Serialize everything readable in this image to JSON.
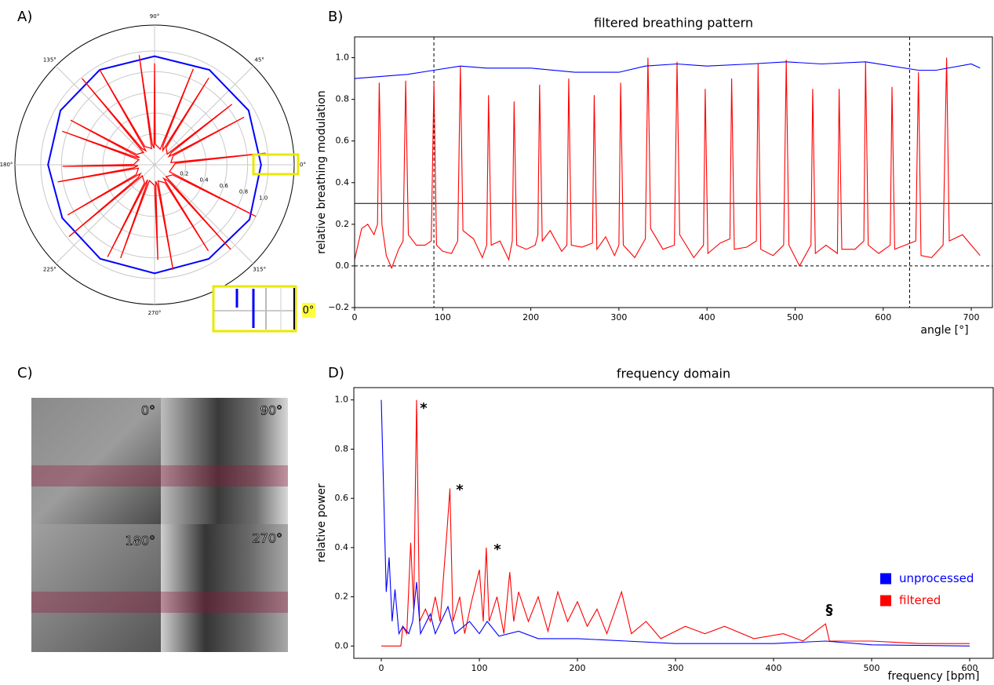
{
  "panel_labels": [
    "A)",
    "B)",
    "C)",
    "D)"
  ],
  "inset_label": "0°",
  "images": {
    "labels": [
      "0°",
      "90°",
      "180°",
      "270°"
    ]
  },
  "chart_data": [
    {
      "type": "polar",
      "rlim": [
        -0.1,
        1.25
      ],
      "rticks": [
        0.2,
        0.4,
        0.6,
        0.8,
        {
          "value": 1.0,
          "label": "1.0"
        }
      ],
      "thetaticks": [
        {
          "value": 0,
          "label": "0°"
        },
        {
          "value": 45,
          "label": "45°"
        },
        {
          "value": 90,
          "label": "90°"
        },
        {
          "value": 135,
          "label": "135°"
        },
        {
          "value": 180,
          "label": "180°"
        },
        {
          "value": 225,
          "label": "225°"
        },
        {
          "value": 270,
          "label": "270°"
        },
        {
          "value": 315,
          "label": "315°"
        }
      ],
      "series": [
        {
          "color": "#0000ff",
          "theta": [
            0,
            30,
            60,
            90,
            120,
            150,
            180,
            210,
            240,
            270,
            300,
            330
          ],
          "values": [
            0.93,
            0.95,
            0.96,
            0.95,
            0.96,
            0.95,
            0.93,
            0.93,
            0.95,
            0.95,
            0.95,
            0.96
          ]
        },
        {
          "color": "#ff0000",
          "theta": [
            4,
            6,
            8,
            26,
            28,
            30,
            36,
            38,
            40,
            56,
            58,
            60,
            66,
            68,
            70,
            88,
            90,
            92,
            96,
            98,
            100,
            118,
            120,
            122,
            128,
            130,
            132,
            150,
            152,
            154,
            158,
            160,
            162,
            179,
            181,
            183,
            188,
            190,
            192,
            208,
            210,
            212,
            218,
            220,
            222,
            241,
            243,
            245,
            248,
            250,
            252,
            270,
            272,
            274,
            278,
            280,
            282,
            300,
            302,
            304,
            310,
            312,
            314,
            331,
            333,
            335
          ],
          "values": [
            0.1,
            0.98,
            0.06,
            0.1,
            0.88,
            0.06,
            0.1,
            0.85,
            0.06,
            0.1,
            0.89,
            0.06,
            0.1,
            0.9,
            0.06,
            0.1,
            0.88,
            0.06,
            0.1,
            0.97,
            0.06,
            0.1,
            0.96,
            0.06,
            0.1,
            0.99,
            0.06,
            0.1,
            0.82,
            0.06,
            0.1,
            0.85,
            0.06,
            0.1,
            0.79,
            0.06,
            0.1,
            0.85,
            0.06,
            0.1,
            0.87,
            0.06,
            0.1,
            0.98,
            0.06,
            0.1,
            0.9,
            0.06,
            0.1,
            0.86,
            0.06,
            0.1,
            0.82,
            0.06,
            0.1,
            0.93,
            0.06,
            0.1,
            0.88,
            0.06,
            0.1,
            1.0,
            0.06,
            0.1,
            1.0,
            0.06
          ]
        }
      ]
    },
    {
      "type": "line",
      "title": "filtered breathing pattern",
      "xlabel": "angle [°]",
      "ylabel": "relative breathing modulation",
      "xlim": [
        0,
        724
      ],
      "ylim": [
        -0.2,
        1.1
      ],
      "xticks": [
        0,
        100,
        200,
        300,
        400,
        500,
        600,
        700
      ],
      "yticks": [
        {
          "value": -0.2,
          "label": "−0.2"
        },
        {
          "value": 0,
          "label": "0.0"
        },
        0.2,
        0.4,
        0.6,
        0.8,
        {
          "value": 1.0,
          "label": "1.0"
        }
      ],
      "reference_lines": [
        {
          "orientation": "vertical",
          "value": 90,
          "style": "dashed"
        },
        {
          "orientation": "vertical",
          "value": 630,
          "style": "dashed"
        },
        {
          "orientation": "horizontal",
          "value": 0.3,
          "style": "solid"
        },
        {
          "orientation": "horizontal",
          "value": 0,
          "style": "dashed"
        }
      ],
      "series": [
        {
          "color": "#0000ff",
          "x": [
            0,
            30,
            60,
            90,
            120,
            150,
            200,
            250,
            300,
            330,
            366,
            400,
            450,
            490,
            530,
            580,
            610,
            640,
            660,
            700,
            710
          ],
          "values": [
            0.9,
            0.91,
            0.92,
            0.94,
            0.96,
            0.95,
            0.95,
            0.93,
            0.93,
            0.96,
            0.97,
            0.96,
            0.97,
            0.98,
            0.97,
            0.98,
            0.96,
            0.94,
            0.94,
            0.97,
            0.95
          ]
        },
        {
          "color": "#ff0000",
          "x": [
            0,
            8,
            15,
            22,
            26,
            28,
            31,
            36,
            42,
            50,
            55,
            58,
            61,
            70,
            80,
            87,
            90,
            93,
            100,
            110,
            117,
            120,
            123,
            135,
            145,
            150,
            152,
            155,
            165,
            175,
            179,
            181,
            184,
            195,
            205,
            208,
            210,
            213,
            222,
            235,
            241,
            243,
            246,
            258,
            270,
            272,
            275,
            285,
            295,
            300,
            302,
            305,
            318,
            330,
            333,
            336,
            350,
            363,
            366,
            369,
            385,
            396,
            398,
            401,
            415,
            426,
            428,
            431,
            445,
            456,
            458,
            461,
            475,
            487,
            490,
            493,
            505,
            518,
            520,
            523,
            535,
            548,
            550,
            553,
            568,
            578,
            580,
            583,
            595,
            608,
            610,
            613,
            625,
            637,
            640,
            643,
            655,
            668,
            672,
            675,
            690,
            700,
            710
          ],
          "values": [
            0.03,
            0.18,
            0.2,
            0.15,
            0.2,
            0.88,
            0.2,
            0.05,
            -0.01,
            0.08,
            0.12,
            0.89,
            0.15,
            0.1,
            0.1,
            0.12,
            0.88,
            0.1,
            0.07,
            0.06,
            0.12,
            0.96,
            0.17,
            0.13,
            0.04,
            0.1,
            0.82,
            0.1,
            0.12,
            0.03,
            0.12,
            0.79,
            0.1,
            0.08,
            0.1,
            0.15,
            0.87,
            0.12,
            0.17,
            0.07,
            0.1,
            0.9,
            0.1,
            0.09,
            0.11,
            0.82,
            0.08,
            0.14,
            0.05,
            0.1,
            0.88,
            0.1,
            0.04,
            0.13,
            1.0,
            0.18,
            0.08,
            0.1,
            0.98,
            0.15,
            0.04,
            0.1,
            0.85,
            0.06,
            0.11,
            0.13,
            0.9,
            0.08,
            0.09,
            0.12,
            0.97,
            0.08,
            0.05,
            0.1,
            0.99,
            0.1,
            0,
            0.1,
            0.85,
            0.06,
            0.1,
            0.06,
            0.85,
            0.08,
            0.08,
            0.12,
            0.98,
            0.1,
            0.06,
            0.1,
            0.86,
            0.08,
            0.1,
            0.12,
            0.93,
            0.05,
            0.04,
            0.1,
            1.0,
            0.12,
            0.15,
            0.1,
            0.05
          ]
        }
      ]
    },
    {
      "type": "line",
      "title": "frequency domain",
      "xlabel": "frequency [bpm]",
      "ylabel": "relative power",
      "xlim": [
        -28,
        624
      ],
      "ylim": [
        -0.05,
        1.05
      ],
      "xticks": [
        0,
        100,
        200,
        300,
        400,
        500,
        600
      ],
      "yticks": [
        {
          "value": 0,
          "label": "0.0"
        },
        0.2,
        0.4,
        0.6,
        0.8,
        {
          "value": 1.0,
          "label": "1.0"
        }
      ],
      "legend": "center right",
      "annotations": [
        {
          "text": "*"
        },
        {
          "text": "*"
        },
        {
          "text": "*"
        },
        {
          "text": "§"
        }
      ],
      "series": [
        {
          "name": "unprocessed",
          "color": "#0000ff",
          "x": [
            0,
            5,
            8,
            11,
            14,
            18,
            22,
            28,
            32,
            36,
            40,
            50,
            55,
            68,
            75,
            90,
            100,
            108,
            120,
            140,
            160,
            200,
            250,
            300,
            400,
            453,
            500,
            600
          ],
          "values": [
            1.0,
            0.22,
            0.36,
            0.1,
            0.23,
            0.05,
            0.08,
            0.05,
            0.1,
            0.26,
            0.05,
            0.13,
            0.05,
            0.16,
            0.05,
            0.1,
            0.05,
            0.1,
            0.04,
            0.06,
            0.03,
            0.03,
            0.02,
            0.01,
            0.01,
            0.02,
            0.005,
            0
          ]
        },
        {
          "name": "filtered",
          "color": "#ff0000",
          "x": [
            0,
            20,
            22,
            26,
            30,
            33,
            36,
            39,
            45,
            50,
            55,
            60,
            67,
            70,
            73,
            80,
            85,
            92,
            100,
            104,
            107,
            110,
            118,
            125,
            131,
            135,
            140,
            150,
            160,
            170,
            180,
            190,
            200,
            210,
            220,
            230,
            245,
            255,
            270,
            285,
            310,
            330,
            350,
            380,
            410,
            430,
            453,
            457,
            500,
            550,
            600
          ],
          "values": [
            0,
            0,
            0.08,
            0.05,
            0.42,
            0.15,
            1.0,
            0.1,
            0.15,
            0.1,
            0.2,
            0.1,
            0.47,
            0.64,
            0.1,
            0.2,
            0.05,
            0.18,
            0.31,
            0.1,
            0.4,
            0.1,
            0.2,
            0.05,
            0.3,
            0.1,
            0.22,
            0.1,
            0.2,
            0.06,
            0.22,
            0.1,
            0.18,
            0.08,
            0.15,
            0.05,
            0.22,
            0.05,
            0.1,
            0.03,
            0.08,
            0.05,
            0.08,
            0.03,
            0.05,
            0.02,
            0.09,
            0.02,
            0.02,
            0.01,
            0.01
          ]
        }
      ]
    }
  ]
}
